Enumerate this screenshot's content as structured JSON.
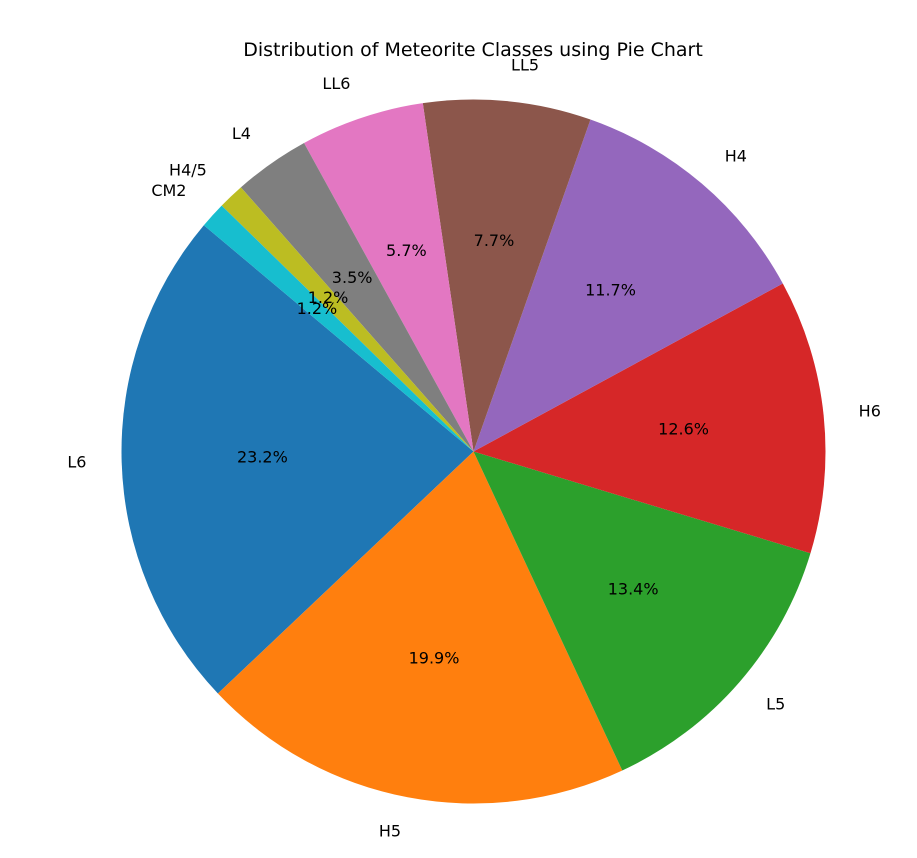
{
  "chart_data": {
    "type": "pie",
    "title": "Distribution of Meteorite Classes using Pie Chart",
    "slices": [
      {
        "label": "L6",
        "value": 23.2,
        "pct_label": "23.2%",
        "color": "#1f77b4"
      },
      {
        "label": "H5",
        "value": 19.9,
        "pct_label": "19.9%",
        "color": "#ff7f0e"
      },
      {
        "label": "L5",
        "value": 13.4,
        "pct_label": "13.4%",
        "color": "#2ca02c"
      },
      {
        "label": "H6",
        "value": 12.6,
        "pct_label": "12.6%",
        "color": "#d62728"
      },
      {
        "label": "H4",
        "value": 11.7,
        "pct_label": "11.7%",
        "color": "#9467bd"
      },
      {
        "label": "LL5",
        "value": 7.7,
        "pct_label": "7.7%",
        "color": "#8c564b"
      },
      {
        "label": "LL6",
        "value": 5.7,
        "pct_label": "5.7%",
        "color": "#e377c2"
      },
      {
        "label": "L4",
        "value": 3.5,
        "pct_label": "3.5%",
        "color": "#7f7f7f"
      },
      {
        "label": "H4/5",
        "value": 1.2,
        "pct_label": "1.2%",
        "color": "#bcbd22"
      },
      {
        "label": "CM2",
        "value": 1.2,
        "pct_label": "1.2%",
        "color": "#17becf"
      }
    ],
    "start_angle_deg": 140,
    "direction": "counterclockwise"
  }
}
